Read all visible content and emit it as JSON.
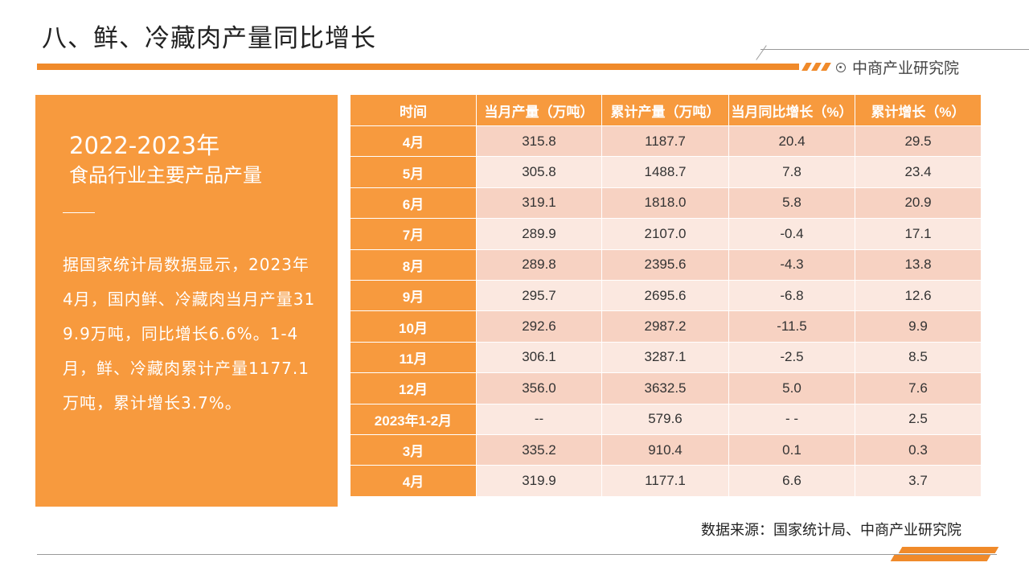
{
  "header": {
    "title": "八、鲜、冷藏肉产量同比增长",
    "brand": "中商产业研究院"
  },
  "summary": {
    "year_range": "2022-2023年",
    "subtitle": "食品行业主要产品产量",
    "body": "据国家统计局数据显示，2023年4月，国内鲜、冷藏肉当月产量319.9万吨，同比增长6.6%。1-4月，鲜、冷藏肉累计产量1177.1万吨，累计增长3.7%。"
  },
  "table": {
    "headers": [
      "时间",
      "当月产量（万吨）",
      "累计产量（万吨）",
      "当月同比增长（%）",
      "累计增长（%）"
    ],
    "rows": [
      [
        "4月",
        "315.8",
        "1187.7",
        "20.4",
        "29.5"
      ],
      [
        "5月",
        "305.8",
        "1488.7",
        "7.8",
        "23.4"
      ],
      [
        "6月",
        "319.1",
        "1818.0",
        "5.8",
        "20.9"
      ],
      [
        "7月",
        "289.9",
        "2107.0",
        "-0.4",
        "17.1"
      ],
      [
        "8月",
        "289.8",
        "2395.6",
        "-4.3",
        "13.8"
      ],
      [
        "9月",
        "295.7",
        "2695.6",
        "-6.8",
        "12.6"
      ],
      [
        "10月",
        "292.6",
        "2987.2",
        "-11.5",
        "9.9"
      ],
      [
        "11月",
        "306.1",
        "3287.1",
        "-2.5",
        "8.5"
      ],
      [
        "12月",
        "356.0",
        "3632.5",
        "5.0",
        "7.6"
      ],
      [
        "2023年1-2月",
        "--",
        "579.6",
        "- -",
        "2.5"
      ],
      [
        "3月",
        "335.2",
        "910.4",
        "0.1",
        "0.3"
      ],
      [
        "4月",
        "319.9",
        "1177.1",
        "6.6",
        "3.7"
      ]
    ]
  },
  "footer": {
    "source": "数据来源：国家统计局、中商产业研究院"
  },
  "colors": {
    "accent": "#f79a3e",
    "row_dark": "#f7d2c2",
    "row_light": "#fbe8e0"
  }
}
